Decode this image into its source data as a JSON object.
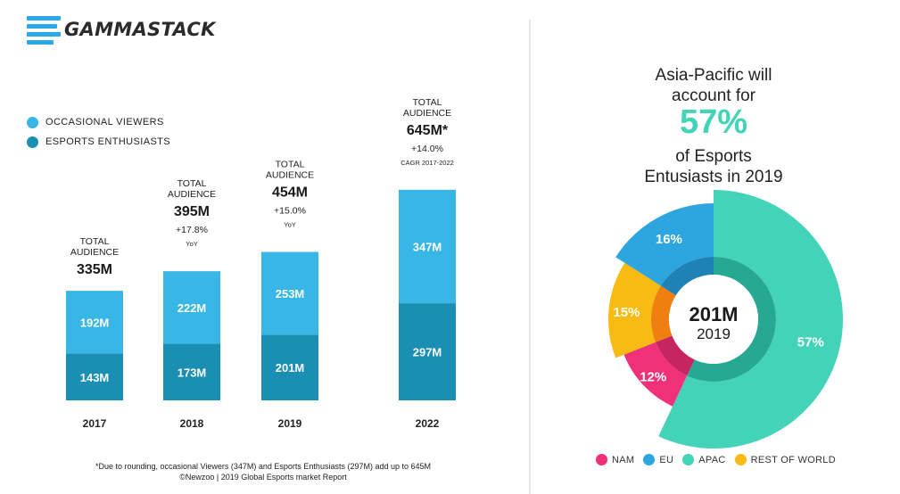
{
  "brand": {
    "name": "GAMMASTACK"
  },
  "bar_chart": {
    "type": "bar",
    "categories": [
      "2017",
      "2018",
      "2019",
      "2022"
    ],
    "series": [
      {
        "name": "ESPORTS ENTHUSIASTS",
        "values": [
          143,
          173,
          201,
          297
        ],
        "labels": [
          "143M",
          "173M",
          "201M",
          "297M"
        ],
        "color": "#1a8fb3"
      },
      {
        "name": "OCCASIONAL VIEWERS",
        "values": [
          192,
          222,
          253,
          347
        ],
        "labels": [
          "192M",
          "222M",
          "253M",
          "347M"
        ],
        "color": "#38b6e6"
      }
    ],
    "totals": [
      {
        "heading": [
          "TOTAL",
          "AUDIENCE"
        ],
        "value": "335M",
        "growth": "",
        "growth_note": ""
      },
      {
        "heading": [
          "TOTAL",
          "AUDIENCE"
        ],
        "value": "395M",
        "growth": "+17.8%",
        "growth_note": "YoY"
      },
      {
        "heading": [
          "TOTAL",
          "AUDIENCE"
        ],
        "value": "454M",
        "growth": "+15.0%",
        "growth_note": "YoY"
      },
      {
        "heading": [
          "TOTAL",
          "AUDIENCE"
        ],
        "value": "645M*",
        "growth": "+14.0%",
        "growth_note": "CAGR 2017-2022"
      }
    ]
  },
  "footnote": {
    "line1": "*Due to rounding, occasional Viewers (347M) and Esports Enthusiasts (297M) add up to 645M",
    "line2": "©Newzoo | 2019 Global Esports market Report"
  },
  "pie_chart": {
    "type": "pie",
    "heading_top": [
      "Asia-Pacific will",
      "account for"
    ],
    "highlight": "57%",
    "heading_bottom": [
      "of Esports",
      "Entusiasts in 2019"
    ],
    "center_value": "201M",
    "center_label": "2019",
    "slices": [
      {
        "name": "APAC",
        "value": 57,
        "label": "57%",
        "color": "#43d3b8",
        "inner": "#27a893"
      },
      {
        "name": "NAM",
        "value": 12,
        "label": "12%",
        "color": "#f0317a",
        "inner": "#c72560"
      },
      {
        "name": "REST OF WORLD",
        "value": 15,
        "label": "15%",
        "color": "#f8bb14",
        "inner": "#ee7f10"
      },
      {
        "name": "EU",
        "value": 16,
        "label": "16%",
        "color": "#2da6e0",
        "inner": "#1e82b4"
      }
    ],
    "legend": [
      "NAM",
      "EU",
      "APAC",
      "REST OF WORLD"
    ]
  },
  "colors": {
    "nam": "#f0317a",
    "eu": "#2da6e0",
    "apac": "#43d3b8",
    "rest_of_world": "#f8bb14"
  }
}
